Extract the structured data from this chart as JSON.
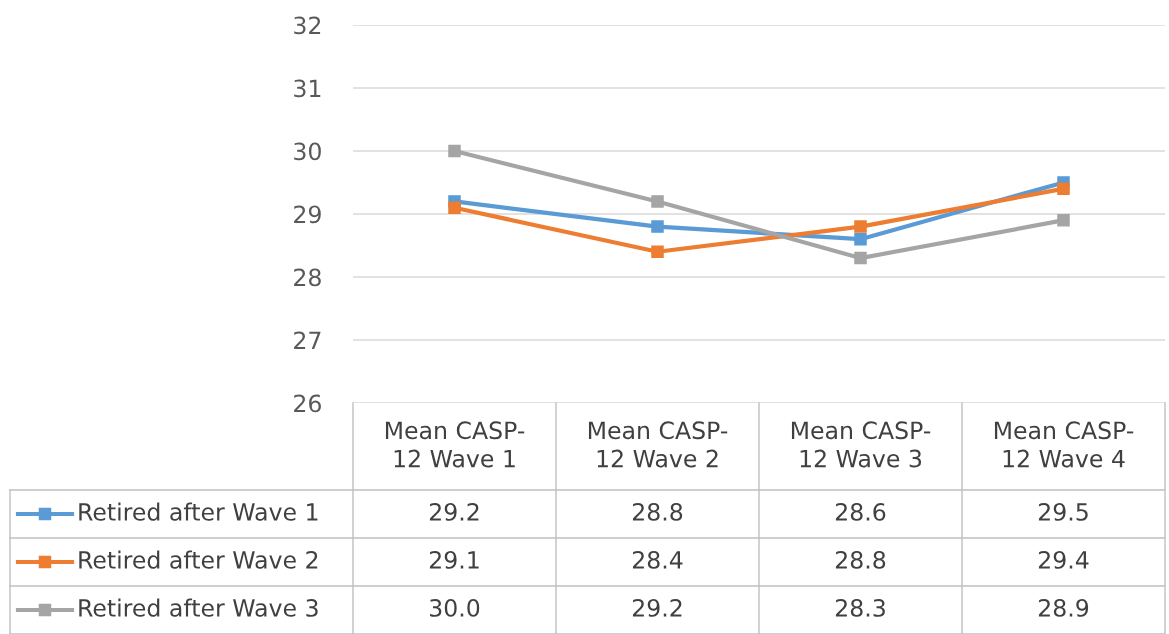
{
  "chart_data": {
    "type": "line",
    "categories": [
      "Mean CASP-\n12 Wave 1",
      "Mean CASP-\n12 Wave 2",
      "Mean CASP-\n12 Wave 3",
      "Mean CASP-\n12 Wave 4"
    ],
    "series": [
      {
        "name": "Retired after Wave 1",
        "color": "#5b9bd5",
        "values": [
          29.2,
          28.8,
          28.6,
          29.5
        ],
        "value_labels": [
          "29.2",
          "28.8",
          "28.6",
          "29.5"
        ]
      },
      {
        "name": "Retired after Wave 2",
        "color": "#ed7d31",
        "values": [
          29.1,
          28.4,
          28.8,
          29.4
        ],
        "value_labels": [
          "29.1",
          "28.4",
          "28.8",
          "29.4"
        ]
      },
      {
        "name": "Retired after Wave 3",
        "color": "#a5a5a5",
        "values": [
          30.0,
          29.2,
          28.3,
          28.9
        ],
        "value_labels": [
          "30.0",
          "29.2",
          "28.3",
          "28.9"
        ]
      }
    ],
    "ylim": [
      26,
      32
    ],
    "yticks": [
      26,
      27,
      28,
      29,
      30,
      31,
      32
    ],
    "grid": "y",
    "marker": "square",
    "line_style": "solid",
    "legend": "bottom"
  }
}
